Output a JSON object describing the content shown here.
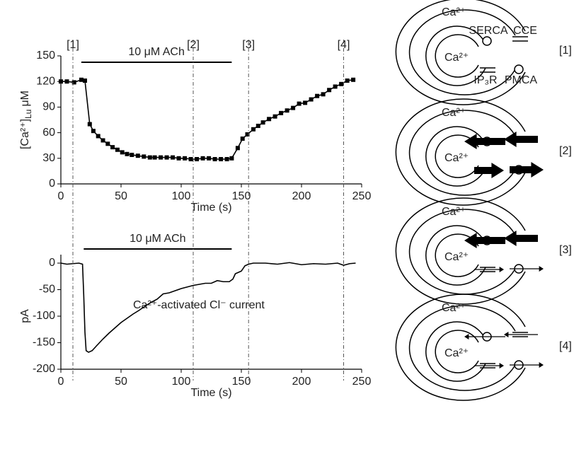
{
  "chart_data": [
    {
      "type": "line",
      "marker": "square",
      "color": "#000000",
      "x": [
        0,
        5,
        11,
        17,
        20,
        24,
        27,
        31,
        35,
        39,
        43,
        47,
        51,
        55,
        59,
        64,
        69,
        74,
        78,
        83,
        88,
        93,
        98,
        103,
        108,
        113,
        118,
        123,
        128,
        133,
        138,
        142,
        147,
        151,
        155,
        160,
        164,
        168,
        173,
        178,
        183,
        188,
        193,
        198,
        203,
        208,
        213,
        218,
        223,
        228,
        233,
        238,
        243
      ],
      "values": [
        120,
        120,
        119,
        122,
        121,
        70,
        62,
        56,
        51,
        47,
        43,
        40,
        37,
        35,
        34,
        33,
        32,
        31,
        31,
        31,
        31,
        31,
        30,
        30,
        29,
        29,
        30,
        30,
        29,
        29,
        29,
        30,
        42,
        53,
        58,
        64,
        68,
        72,
        76,
        79,
        83,
        86,
        89,
        94,
        95,
        99,
        103,
        105,
        110,
        114,
        117,
        121,
        122
      ],
      "xlim": [
        0,
        250
      ],
      "ylim": [
        0,
        150
      ],
      "xticks": [
        0,
        50,
        100,
        150,
        200,
        250
      ],
      "yticks": [
        0,
        30,
        60,
        90,
        120,
        150
      ],
      "xlabel": "Time (s)",
      "ylabel": {
        "text": "[Ca²⁺]",
        "sub": "Lu",
        "unit": "μM"
      },
      "ach_bar": {
        "label": "10 μM ACh",
        "x": [
          17,
          142
        ]
      }
    },
    {
      "type": "line",
      "color": "#000000",
      "x": [
        0,
        5,
        10,
        15,
        18,
        19,
        20,
        21,
        23,
        26,
        30,
        35,
        40,
        45,
        50,
        55,
        60,
        65,
        70,
        75,
        80,
        85,
        90,
        95,
        100,
        105,
        110,
        115,
        120,
        125,
        130,
        135,
        140,
        143,
        145,
        150,
        153,
        156,
        160,
        170,
        180,
        190,
        200,
        210,
        220,
        230,
        235,
        240,
        245
      ],
      "values": [
        0,
        -2,
        -1,
        0,
        -2,
        -60,
        -130,
        -165,
        -168,
        -165,
        -155,
        -143,
        -132,
        -122,
        -112,
        -104,
        -96,
        -89,
        -81,
        -74,
        -68,
        -58,
        -56,
        -52,
        -48,
        -45,
        -42,
        -40,
        -38,
        -38,
        -33,
        -35,
        -35,
        -30,
        -20,
        -15,
        -5,
        -2,
        0,
        0,
        -2,
        1,
        -3,
        -1,
        -2,
        0,
        -4,
        -1,
        0
      ],
      "xlim": [
        0,
        250
      ],
      "ylim": [
        -200,
        0
      ],
      "xticks": [
        0,
        50,
        100,
        150,
        200,
        250
      ],
      "yticks": [
        0,
        -50,
        -100,
        -150,
        -200
      ],
      "xlabel": "Time (s)",
      "ylabel": "pA",
      "annotation": "Ca²⁺-activated Cl⁻ current",
      "ach_bar": {
        "label": "10 μM ACh",
        "x": [
          19,
          142
        ]
      }
    }
  ],
  "time_markers": [
    {
      "label": "[1]",
      "t": 10
    },
    {
      "label": "[2]",
      "t": 110
    },
    {
      "label": "[3]",
      "t": 156
    },
    {
      "label": "[4]",
      "t": 235
    }
  ],
  "diagrams": [
    {
      "label": "[1]",
      "outer_text": "Ca²⁺",
      "inner_text": "Ca²⁺",
      "serca": "SERCA",
      "cce": "CCE",
      "ip3r": "IP₃R",
      "pmca": "PMCA"
    },
    {
      "label": "[2]",
      "outer_text": "Ca²⁺",
      "inner_text": "Ca²⁺"
    },
    {
      "label": "[3]",
      "outer_text": "Ca²⁺",
      "inner_text": "Ca²⁺"
    },
    {
      "label": "[4]",
      "outer_text": "Ca²⁺",
      "inner_text": "Ca²⁺"
    }
  ]
}
